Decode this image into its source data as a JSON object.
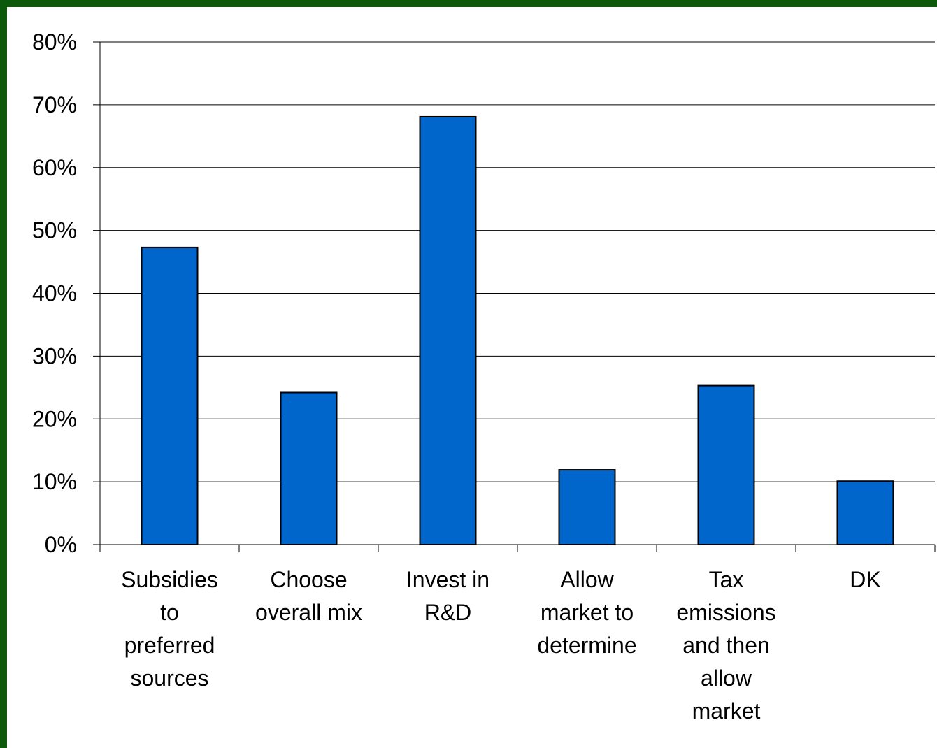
{
  "colors": {
    "background": "#0b5a0b",
    "bar_fill": "#0066cc",
    "bar_stroke": "#000000",
    "gridline": "#000000"
  },
  "chart_data": {
    "type": "bar",
    "title": "",
    "xlabel": "",
    "ylabel": "",
    "categories": [
      "Subsidies to preferred sources",
      "Choose overall mix",
      "Invest in R&D",
      "Allow market to determine",
      "Tax emissions and then allow market",
      "DK"
    ],
    "category_lines": [
      [
        "Subsidies",
        "to",
        "preferred",
        "sources"
      ],
      [
        "Choose",
        "overall mix"
      ],
      [
        "Invest in",
        "R&D"
      ],
      [
        "Allow",
        "market to",
        "determine"
      ],
      [
        "Tax",
        "emissions",
        "and then",
        "allow",
        "market"
      ],
      [
        "DK"
      ]
    ],
    "values": [
      47.3,
      24.2,
      68.1,
      11.9,
      25.3,
      10.1
    ],
    "ylim": [
      0,
      80
    ],
    "yticks": [
      0,
      10,
      20,
      30,
      40,
      50,
      60,
      70,
      80
    ],
    "ytick_labels": [
      "0%",
      "10%",
      "20%",
      "30%",
      "40%",
      "50%",
      "60%",
      "70%",
      "80%"
    ],
    "grid": true,
    "legend": "none"
  }
}
